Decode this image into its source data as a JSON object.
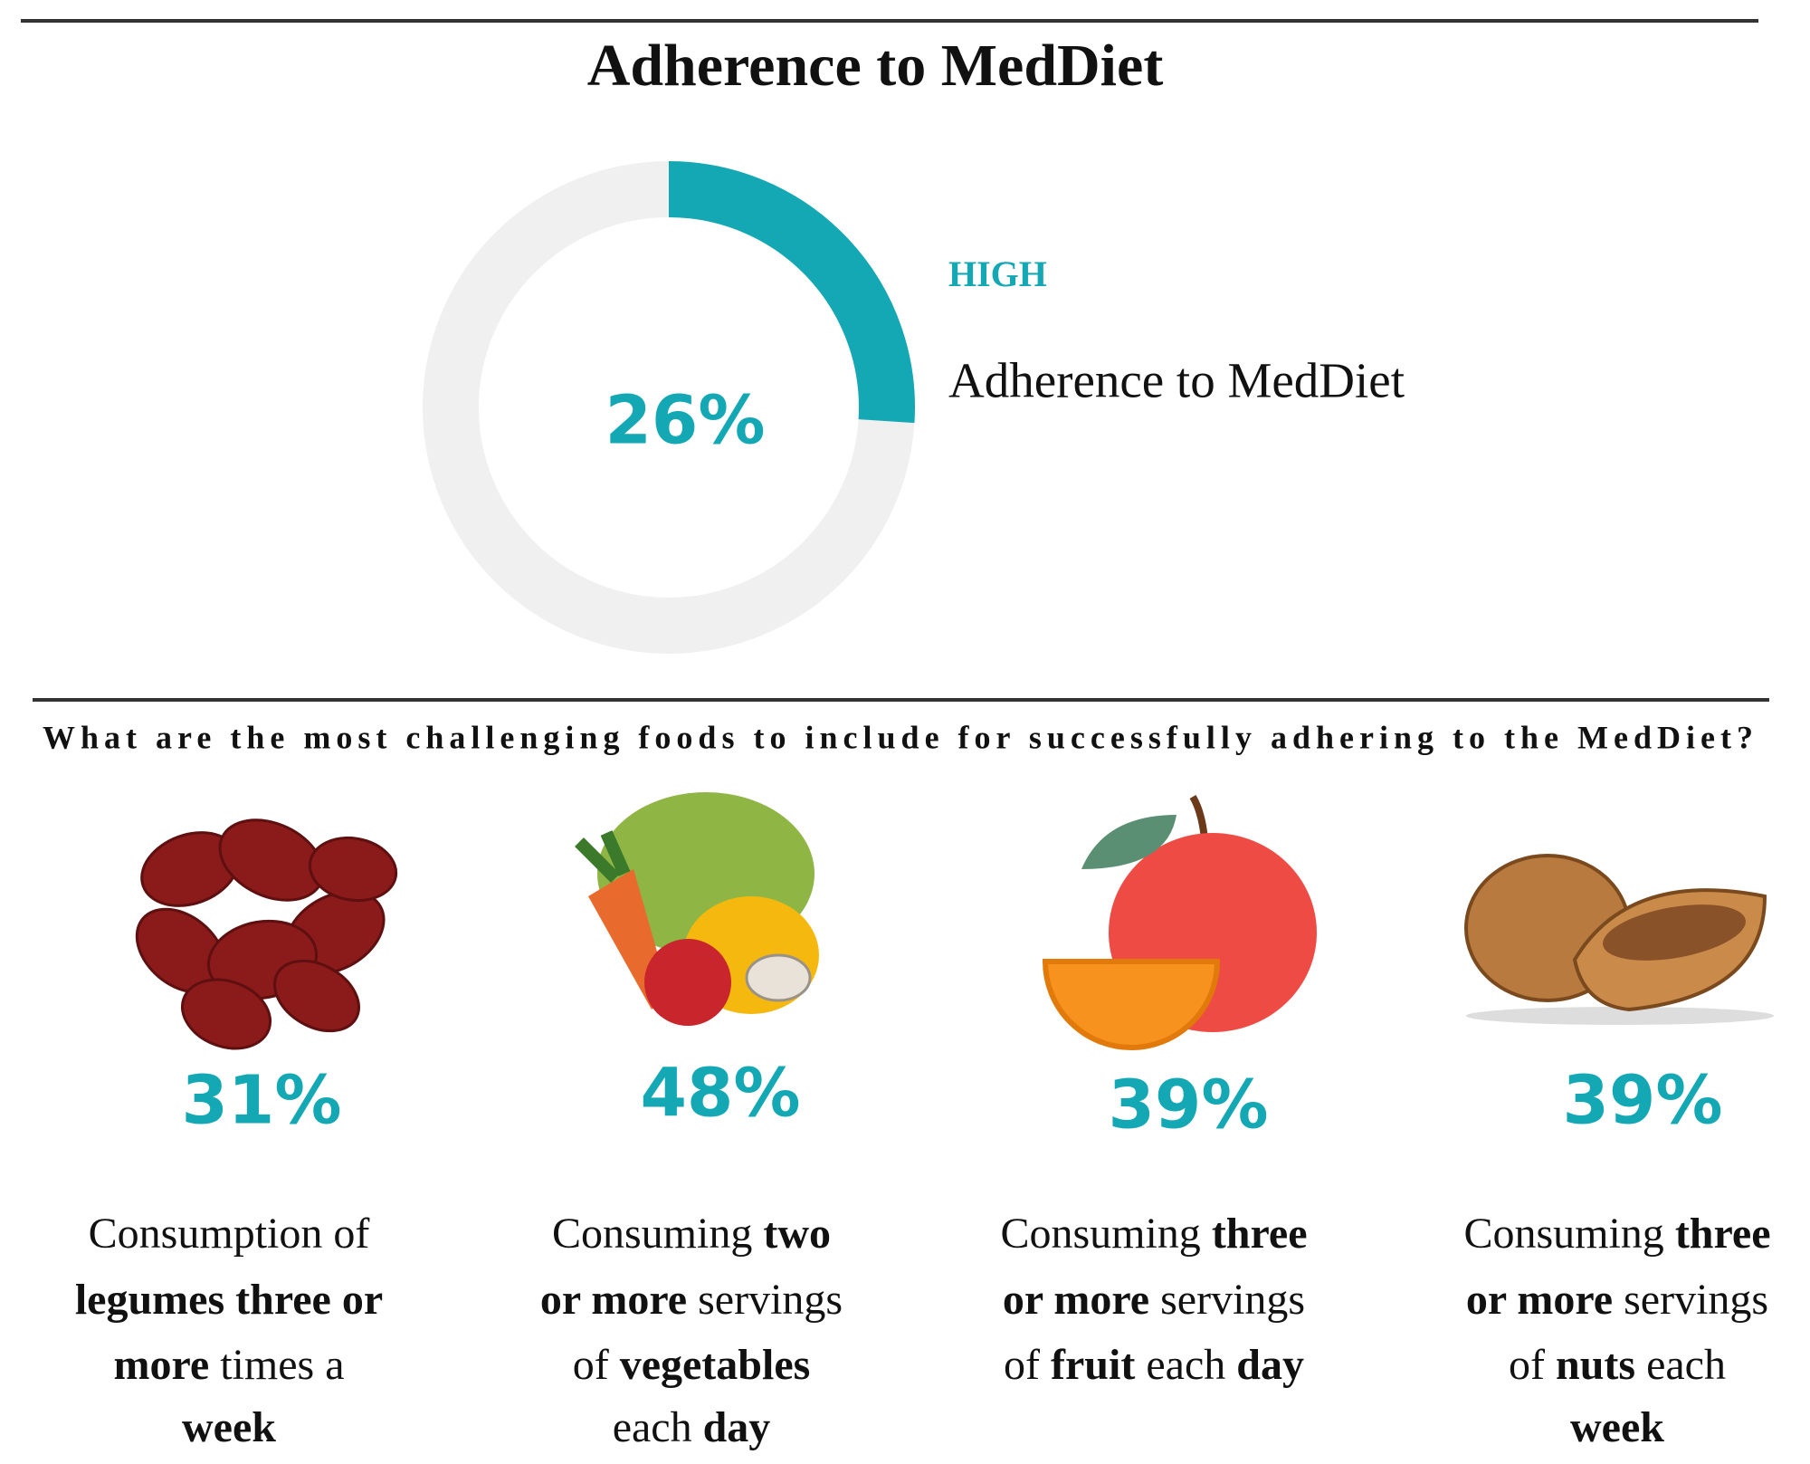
{
  "title": "Adherence to MedDiet",
  "donut": {
    "value": 26,
    "value_label": "26%",
    "max": 100,
    "color": "#14a8b5",
    "track_color": "#f0f0f0",
    "level": "HIGH",
    "label": "Adherence to MedDiet"
  },
  "question": "What are the most challenging foods to include for successfully adhering to the MedDiet?",
  "items": {
    "color": "#14a8b5",
    "values": [
      31,
      48,
      39,
      39
    ],
    "value_labels": [
      "31%",
      "48%",
      "39%",
      "39%"
    ],
    "descriptions": [
      [
        [
          {
            "text": "Consumption of",
            "bold": false
          }
        ],
        [
          {
            "text": "legumes three or",
            "bold": true
          }
        ],
        [
          {
            "text": "more",
            "bold": true
          },
          {
            "text": " times a",
            "bold": false
          }
        ],
        [
          {
            "text": "week",
            "bold": true
          }
        ]
      ],
      [
        [
          {
            "text": "Consuming ",
            "bold": false
          },
          {
            "text": "two",
            "bold": true
          }
        ],
        [
          {
            "text": "or more",
            "bold": true
          },
          {
            "text": " servings",
            "bold": false
          }
        ],
        [
          {
            "text": "of ",
            "bold": false
          },
          {
            "text": "vegetables",
            "bold": true
          }
        ],
        [
          {
            "text": "each ",
            "bold": false
          },
          {
            "text": "day",
            "bold": true
          }
        ]
      ],
      [
        [
          {
            "text": "Consuming ",
            "bold": false
          },
          {
            "text": "three",
            "bold": true
          }
        ],
        [
          {
            "text": "or more",
            "bold": true
          },
          {
            "text": " servings",
            "bold": false
          }
        ],
        [
          {
            "text": "of ",
            "bold": false
          },
          {
            "text": "fruit",
            "bold": true
          },
          {
            "text": " each ",
            "bold": false
          },
          {
            "text": "day",
            "bold": true
          }
        ]
      ],
      [
        [
          {
            "text": "Consuming ",
            "bold": false
          },
          {
            "text": "three",
            "bold": true
          }
        ],
        [
          {
            "text": "or more",
            "bold": true
          },
          {
            "text": " servings",
            "bold": false
          }
        ],
        [
          {
            "text": "of ",
            "bold": false
          },
          {
            "text": "nuts",
            "bold": true
          },
          {
            "text": " each",
            "bold": false
          }
        ],
        [
          {
            "text": "week",
            "bold": true
          }
        ]
      ]
    ]
  }
}
